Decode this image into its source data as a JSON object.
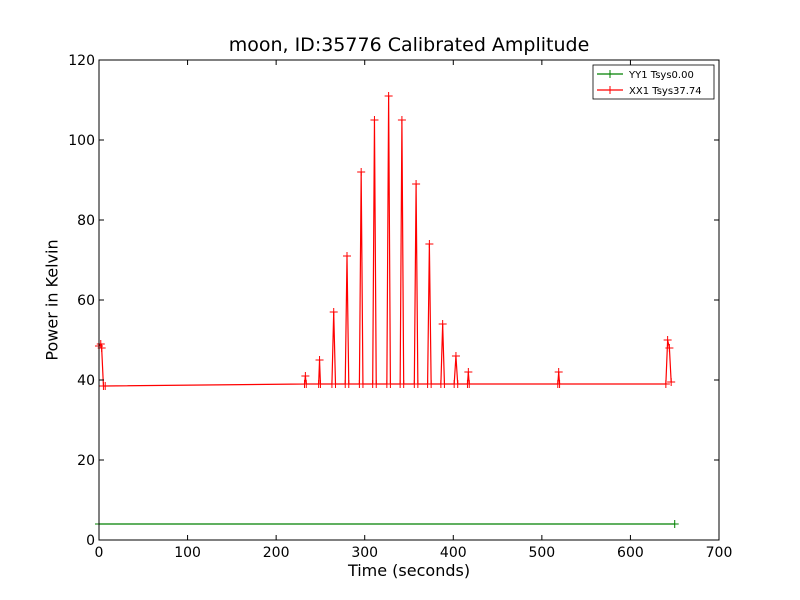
{
  "chart_data": {
    "type": "line",
    "title": "moon, ID:35776 Calibrated Amplitude",
    "xlabel": "Time (seconds)",
    "ylabel": "Power in Kelvin",
    "xlim": [
      0,
      700
    ],
    "ylim": [
      0,
      120
    ],
    "xticks": [
      "0",
      "100",
      "200",
      "300",
      "400",
      "500",
      "600",
      "700"
    ],
    "yticks": [
      "0",
      "20",
      "40",
      "60",
      "80",
      "100",
      "120"
    ],
    "grid": false,
    "legend_position": "top-right",
    "series": [
      {
        "name": "YY1 Tsys0.00",
        "color": "#008000",
        "marker": "plus",
        "x": [
          0,
          650
        ],
        "y": [
          4,
          4
        ]
      },
      {
        "name": "XX1 Tsys37.74",
        "color": "#ff0000",
        "marker": "plus",
        "x": [
          0,
          2,
          3,
          5,
          7,
          232,
          233,
          234,
          248,
          249,
          250,
          263,
          265,
          267,
          278,
          280,
          282,
          294,
          296,
          298,
          309,
          311,
          313,
          325,
          327,
          329,
          340,
          342,
          344,
          356,
          358,
          360,
          371,
          373,
          375,
          386,
          388,
          390,
          401,
          403,
          405,
          416,
          417,
          418,
          518,
          519,
          520,
          640,
          642,
          644,
          646
        ],
        "y": [
          48.5,
          49,
          48,
          38.5,
          38.5,
          39,
          41,
          39,
          39,
          45,
          39,
          39,
          57,
          39,
          39,
          71,
          39,
          39,
          92,
          39,
          39,
          105,
          39,
          39,
          111,
          39,
          39,
          105,
          39,
          39,
          89,
          39,
          39,
          74,
          39,
          39,
          54,
          39,
          39,
          46,
          39,
          39,
          42,
          39,
          39,
          42,
          39,
          39,
          50,
          48,
          39.5
        ]
      }
    ]
  }
}
